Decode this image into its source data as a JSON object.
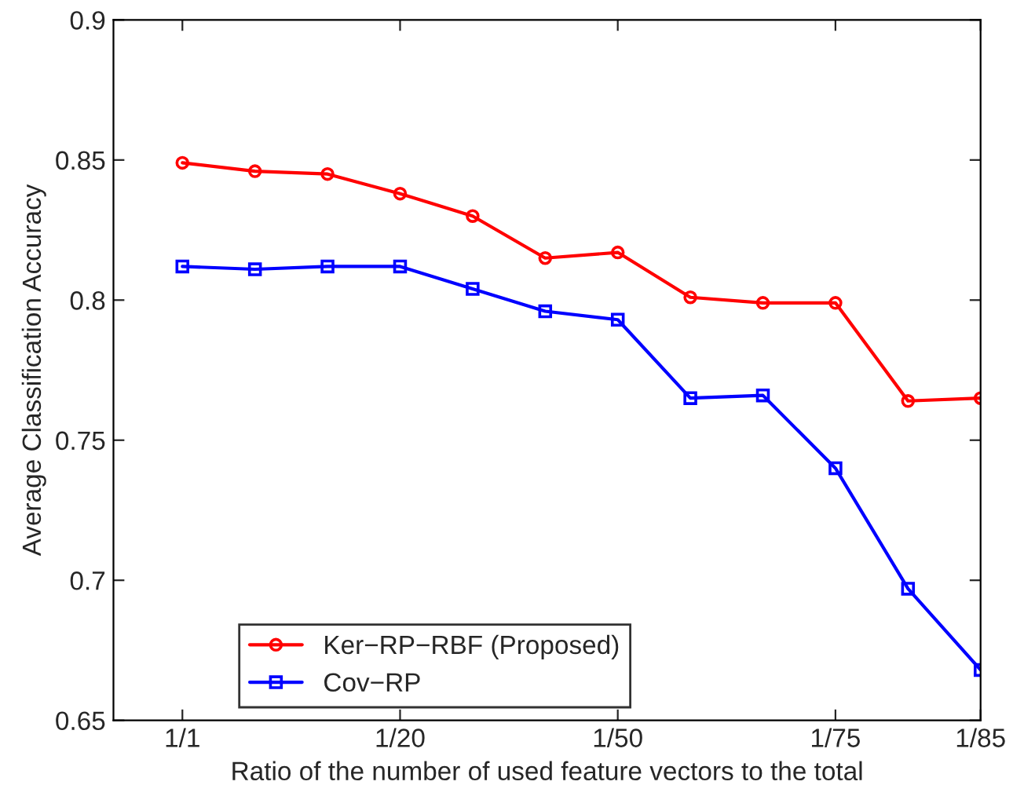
{
  "chart_data": {
    "type": "line",
    "xlabel": "Ratio of the number of used feature vectors to the total",
    "ylabel": "Average Classification Accuracy",
    "categories": [
      "1/1",
      null,
      null,
      "1/20",
      null,
      null,
      "1/50",
      null,
      null,
      "1/75",
      null,
      "1/85"
    ],
    "series": [
      {
        "name": "Ker−RP−RBF (Proposed)",
        "color": "#ff0000",
        "marker": "circle",
        "values": [
          0.849,
          0.846,
          0.845,
          0.838,
          0.83,
          0.815,
          0.817,
          0.801,
          0.799,
          0.799,
          0.764,
          0.765
        ]
      },
      {
        "name": "Cov−RP",
        "color": "#0000ff",
        "marker": "square",
        "values": [
          0.812,
          0.811,
          0.812,
          0.812,
          0.804,
          0.796,
          0.793,
          0.765,
          0.766,
          0.74,
          0.697,
          0.668
        ]
      }
    ],
    "ylim": [
      0.65,
      0.9
    ],
    "yticks": [
      0.65,
      0.7,
      0.75,
      0.8,
      0.85,
      0.9
    ],
    "grid": false,
    "legend": "bottom left",
    "line_style": "solid"
  }
}
